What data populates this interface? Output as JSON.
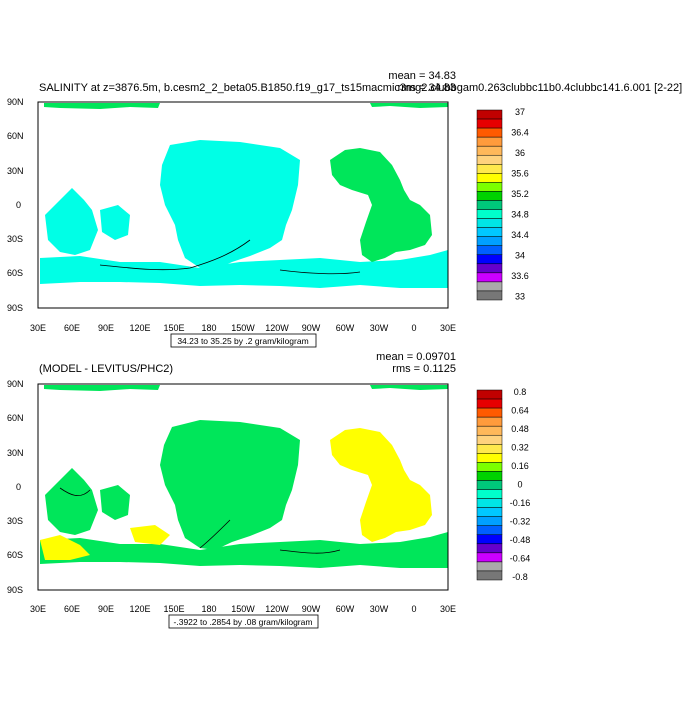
{
  "panels": [
    {
      "title": "SALINITY at z=3876.5m, b.cesm2_2_beta05.B1850.f19_g17_ts15macmic3mg2.clubbgam0.263clubbc11b0.4clubbc141.6.001 [2-22]",
      "mean_text": "mean = 34.83",
      "rms_text": "rms = 34.83",
      "contour_info": "34.23 to 35.25 by .2 gram/kilogram",
      "colorbar": {
        "labels": [
          "37",
          "36.4",
          "36",
          "35.6",
          "35.2",
          "34.8",
          "34.4",
          "34",
          "33.6",
          "33"
        ],
        "colors": [
          "#c00000",
          "#e60000",
          "#ff5a00",
          "#ff9b3c",
          "#ffb85a",
          "#ffd27e",
          "#ffe94d",
          "#ffff00",
          "#7cff00",
          "#00d200",
          "#00c87a",
          "#00ffcc",
          "#00e6e6",
          "#00c8ff",
          "#00a0ff",
          "#0060ff",
          "#0000ff",
          "#6600cc",
          "#cc00ff",
          "#aaaaaa",
          "#777777"
        ]
      }
    },
    {
      "title": "(MODEL - LEVITUS/PHC2)",
      "mean_text": "mean = 0.09701",
      "rms_text": "rms = 0.1125",
      "contour_info": "-.3922 to .2854 by .08 gram/kilogram",
      "colorbar": {
        "labels": [
          "0.8",
          "0.64",
          "0.48",
          "0.32",
          "0.16",
          "0",
          "-0.16",
          "-0.32",
          "-0.48",
          "-0.64",
          "-0.8"
        ],
        "colors": [
          "#c00000",
          "#e60000",
          "#ff5a00",
          "#ff9b3c",
          "#ffb85a",
          "#ffd27e",
          "#ffe94d",
          "#ffff00",
          "#7cff00",
          "#00d200",
          "#00c87a",
          "#00ffcc",
          "#00e6e6",
          "#00c8ff",
          "#00a0ff",
          "#0060ff",
          "#0000ff",
          "#6600cc",
          "#cc00ff",
          "#aaaaaa",
          "#777777"
        ]
      }
    }
  ],
  "axes": {
    "lon_labels": [
      "30E",
      "60E",
      "90E",
      "120E",
      "150E",
      "180",
      "150W",
      "120W",
      "90W",
      "60W",
      "30W",
      "0",
      "30E"
    ],
    "lat_labels": [
      "90N",
      "60N",
      "30N",
      "0",
      "30S",
      "60S",
      "90S"
    ]
  },
  "colors": {
    "cyan": "#00ffe6",
    "green": "#00e65a",
    "light_green": "#3cff3c",
    "yellow": "#ffff00"
  }
}
